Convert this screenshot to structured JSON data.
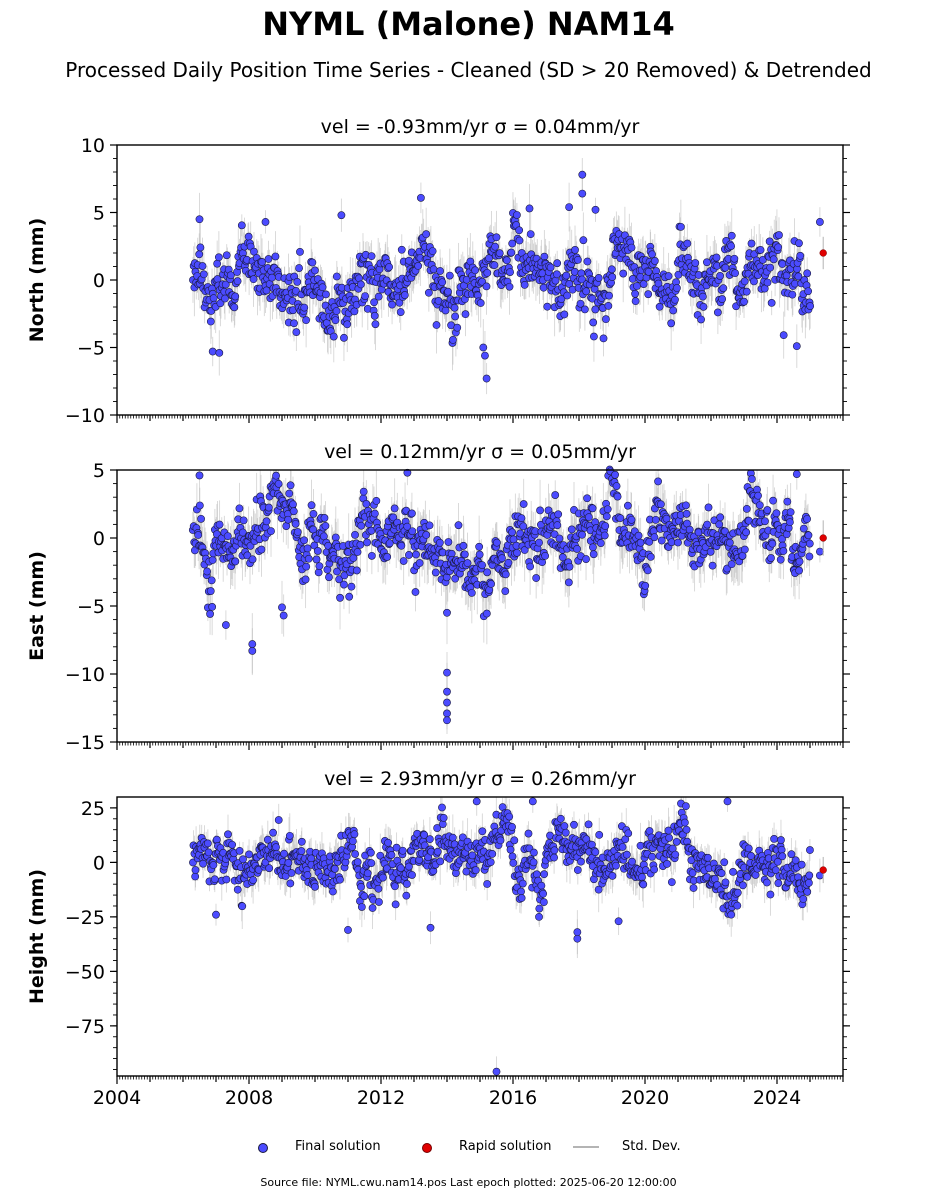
{
  "title": "NYML (Malone) NAM14",
  "subtitle": "Processed Daily Position Time Series - Cleaned (SD > 20 Removed) & Detrended",
  "footer": "Source file: NYML.cwu.nam14.pos  Last epoch plotted: 2025-06-20 12:00:00",
  "legend": {
    "final": "Final solution",
    "rapid": "Rapid solution",
    "std": "Std. Dev."
  },
  "colors": {
    "final": "#4b4bff",
    "rapid": "#e00000",
    "std": "#b4b4b4",
    "marker_edge": "#1a1a40"
  },
  "chart_data": [
    {
      "type": "scatter",
      "title": "vel = -0.93mm/yr   σ = 0.04mm/yr",
      "ylabel": "North (mm)",
      "xlim": [
        2004,
        2026
      ],
      "ylim": [
        -10,
        10
      ],
      "xticks": [
        2004,
        2008,
        2012,
        2016,
        2020,
        2024
      ],
      "yticks": [
        10,
        5,
        0,
        -5,
        -10
      ],
      "ytick_labels": [
        "10",
        "5",
        "0",
        "−5",
        "−10"
      ],
      "final_range": [
        2006.3,
        2025.0
      ],
      "typical_spread_mm": 1.6,
      "typical_sd_mm": 1.2,
      "rapid": [
        {
          "x": 2025.4,
          "y": 2.0
        }
      ],
      "outliers": [
        {
          "x": 2006.5,
          "y": 4.5
        },
        {
          "x": 2006.9,
          "y": -5.3
        },
        {
          "x": 2007.1,
          "y": -5.4
        },
        {
          "x": 2008.5,
          "y": 4.3
        },
        {
          "x": 2010.8,
          "y": 4.8
        },
        {
          "x": 2016.5,
          "y": 5.3
        },
        {
          "x": 2015.1,
          "y": -5.0
        },
        {
          "x": 2015.2,
          "y": -7.3
        },
        {
          "x": 2015.15,
          "y": -5.6
        },
        {
          "x": 2017.7,
          "y": 5.4
        },
        {
          "x": 2018.1,
          "y": 7.8
        },
        {
          "x": 2018.1,
          "y": 6.4
        },
        {
          "x": 2018.5,
          "y": 5.2
        },
        {
          "x": 2024.6,
          "y": -4.9
        },
        {
          "x": 2025.3,
          "y": 4.3
        }
      ]
    },
    {
      "type": "scatter",
      "title": "vel = 0.12mm/yr   σ = 0.05mm/yr",
      "ylabel": "East (mm)",
      "xlim": [
        2004,
        2026
      ],
      "ylim": [
        -15,
        5
      ],
      "xticks": [
        2004,
        2008,
        2012,
        2016,
        2020,
        2024
      ],
      "yticks": [
        5,
        0,
        -5,
        -10,
        -15
      ],
      "ytick_labels": [
        "5",
        "0",
        "−5",
        "−10",
        "−15"
      ],
      "final_range": [
        2006.3,
        2025.0
      ],
      "typical_spread_mm": 1.5,
      "typical_sd_mm": 1.3,
      "rapid": [
        {
          "x": 2025.4,
          "y": 0.0
        }
      ],
      "outliers": [
        {
          "x": 2006.5,
          "y": 4.6
        },
        {
          "x": 2007.3,
          "y": -6.4
        },
        {
          "x": 2008.1,
          "y": -7.8
        },
        {
          "x": 2008.1,
          "y": -8.3
        },
        {
          "x": 2009.0,
          "y": -5.1
        },
        {
          "x": 2009.05,
          "y": -5.7
        },
        {
          "x": 2012.8,
          "y": 4.8
        },
        {
          "x": 2014.0,
          "y": -9.9
        },
        {
          "x": 2014.0,
          "y": -11.3
        },
        {
          "x": 2014.0,
          "y": -12.1
        },
        {
          "x": 2014.0,
          "y": -12.9
        },
        {
          "x": 2014.0,
          "y": -13.4
        },
        {
          "x": 2014.0,
          "y": -5.5
        },
        {
          "x": 2024.6,
          "y": 4.7
        },
        {
          "x": 2025.3,
          "y": -1.0
        }
      ]
    },
    {
      "type": "scatter",
      "title": "vel = 2.93mm/yr   σ = 0.26mm/yr",
      "ylabel": "Height (mm)",
      "xlabel": "",
      "xlim": [
        2004,
        2026
      ],
      "ylim": [
        -98,
        30
      ],
      "xticks": [
        2004,
        2008,
        2012,
        2016,
        2020,
        2024
      ],
      "xtick_labels": [
        "2004",
        "2008",
        "2012",
        "2016",
        "2020",
        "2024"
      ],
      "yticks": [
        25,
        0,
        -25,
        -50,
        -75
      ],
      "ytick_labels": [
        "25",
        "0",
        "−25",
        "−50",
        "−75"
      ],
      "final_range": [
        2006.3,
        2025.0
      ],
      "typical_spread_mm": 8,
      "typical_sd_mm": 6,
      "rapid": [
        {
          "x": 2025.4,
          "y": -3.5
        }
      ],
      "outliers": [
        {
          "x": 2007.0,
          "y": -24
        },
        {
          "x": 2011.0,
          "y": -31
        },
        {
          "x": 2013.5,
          "y": -30
        },
        {
          "x": 2014.9,
          "y": 28
        },
        {
          "x": 2016.6,
          "y": 28
        },
        {
          "x": 2017.95,
          "y": -35
        },
        {
          "x": 2017.95,
          "y": -32
        },
        {
          "x": 2019.2,
          "y": -27
        },
        {
          "x": 2022.5,
          "y": 28
        },
        {
          "x": 2015.5,
          "y": -96
        },
        {
          "x": 2025.3,
          "y": -6
        }
      ]
    }
  ]
}
